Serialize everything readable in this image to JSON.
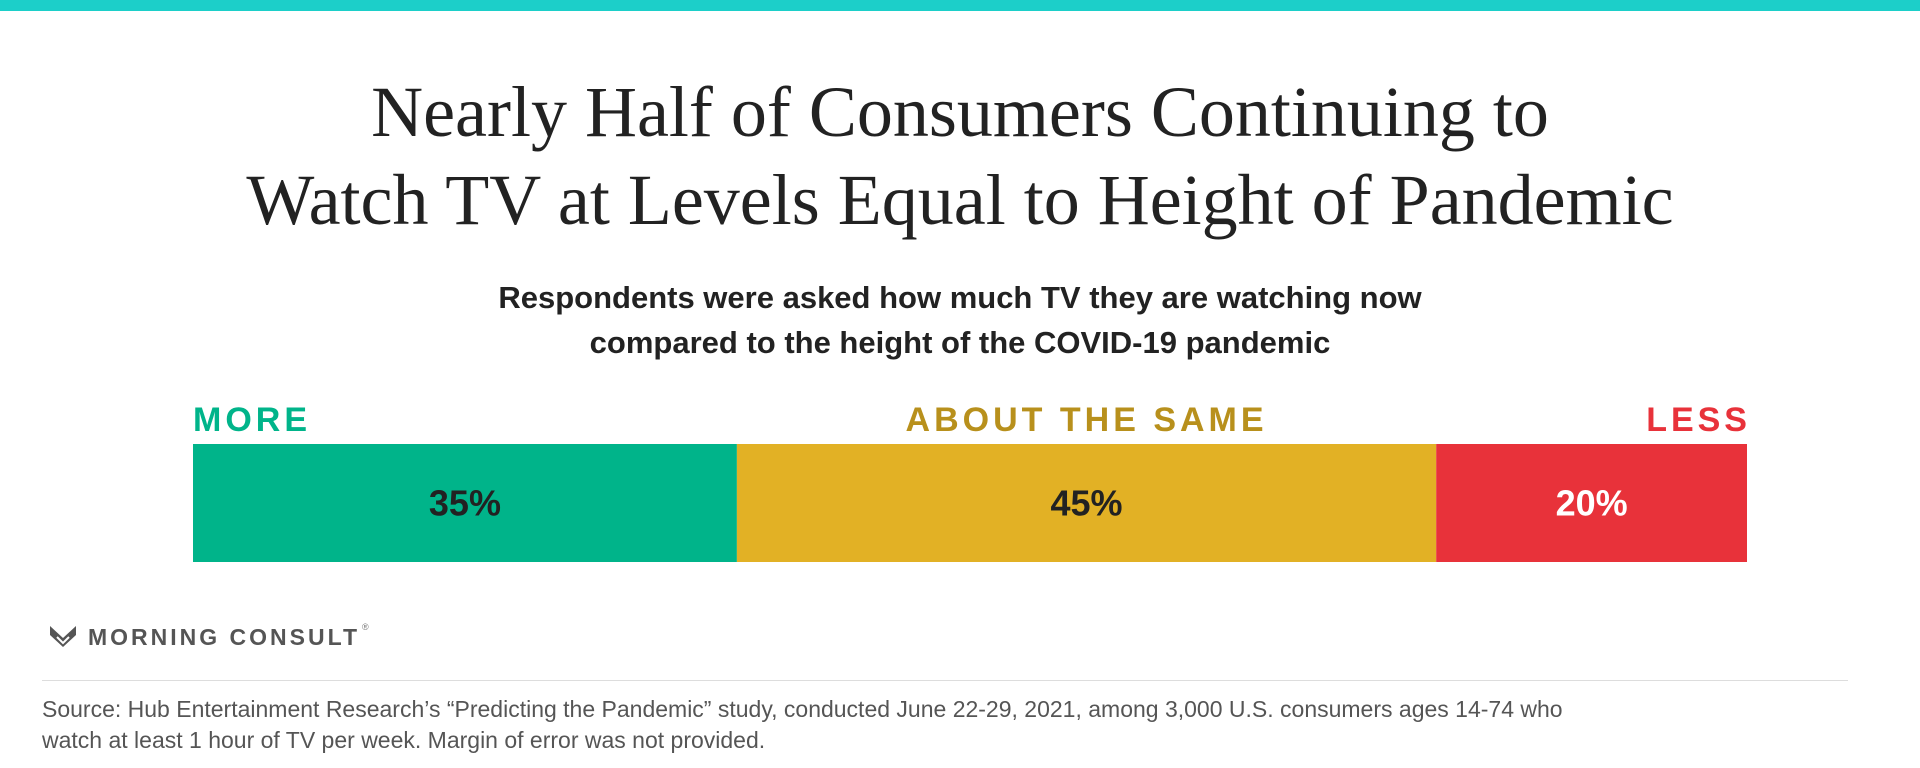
{
  "title_lines": [
    "Nearly Half of Consumers Continuing to",
    "Watch TV at Levels Equal to Height of Pandemic"
  ],
  "subtitle_lines": [
    "Respondents were asked how much TV they are watching now",
    "compared to the height of the COVID-19 pandemic"
  ],
  "chart_data": {
    "type": "bar",
    "orientation": "horizontal-stacked",
    "categories": [
      "MORE",
      "ABOUT THE SAME",
      "LESS"
    ],
    "values": [
      35,
      45,
      20
    ],
    "value_labels": [
      "35%",
      "45%",
      "20%"
    ],
    "colors": [
      "#00b48a",
      "#e2b125",
      "#e8323a"
    ],
    "label_colors": [
      "#00b48a",
      "#b8901c",
      "#e8323a"
    ],
    "value_text_colors": [
      "#222222",
      "#222222",
      "#ffffff"
    ],
    "xlim": [
      0,
      100
    ]
  },
  "brand": {
    "name": "MORNING CONSULT",
    "registered": "®",
    "accent_color": "#1ccfc9"
  },
  "source_lines": [
    "Source: Hub Entertainment Research’s “Predicting the Pandemic” study, conducted June 22-29, 2021, among 3,000 U.S. consumers ages 14-74 who",
    "watch at least 1 hour of TV per week. Margin of error was not provided."
  ]
}
